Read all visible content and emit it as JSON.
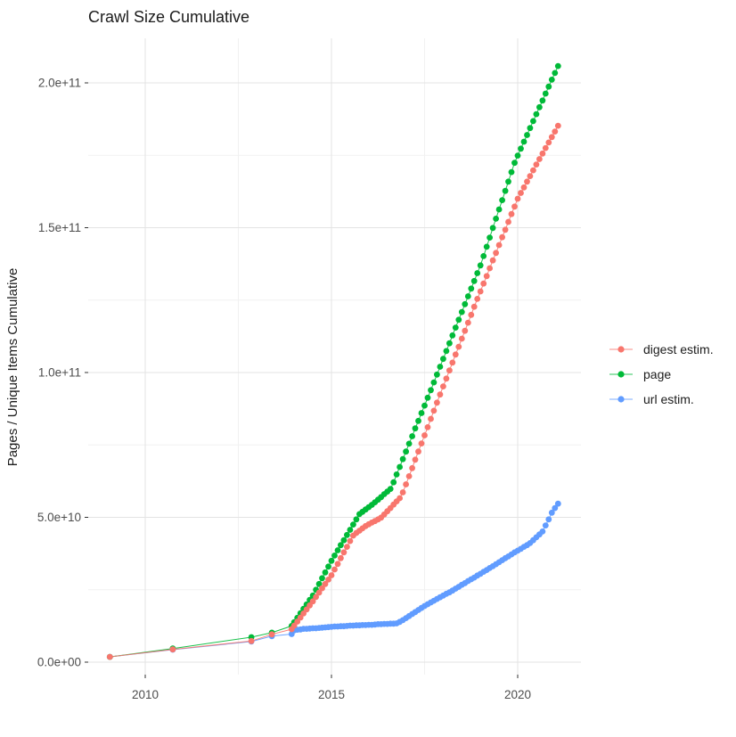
{
  "title": "Crawl Size Cumulative",
  "axes": {
    "x": {
      "tick_labels": [
        "2010",
        "2015",
        "2020"
      ],
      "tick_years": [
        2010,
        2015,
        2020
      ],
      "minor_years": [
        2012.5,
        2017.5
      ]
    },
    "y": {
      "title": "Pages / Unique Items Cumulative",
      "tick_labels": [
        "0.0e+00",
        "5.0e+10",
        "1.0e+11",
        "1.5e+11",
        "2.0e+11"
      ],
      "tick_values_e9": [
        0,
        50,
        100,
        150,
        200
      ],
      "minor_values_e9": [
        25,
        75,
        125,
        175
      ]
    }
  },
  "legend": {
    "items": [
      {
        "label": "digest estim.",
        "color": "#F8766D"
      },
      {
        "label": "page",
        "color": "#00BA38"
      },
      {
        "label": "url estim.",
        "color": "#619CFF"
      }
    ]
  },
  "chart_data": {
    "type": "scatter",
    "title": "Crawl Size Cumulative",
    "xlabel": "",
    "ylabel": "Pages / Unique Items Cumulative",
    "x_unit": "year (decimal)",
    "y_unit": "cumulative pages / unique items, billions (1e9)",
    "xlim": [
      2008.5,
      2021.8
    ],
    "ylim_e9": [
      -9,
      216
    ],
    "grid": true,
    "legend_position": "right",
    "series": [
      {
        "name": "digest estim.",
        "color": "#F8766D",
        "points": [
          [
            2009.05,
            1.8
          ],
          [
            2010.74,
            4.4
          ],
          [
            2012.85,
            7.3
          ],
          [
            2013.4,
            9.6
          ],
          [
            2013.93,
            11.4
          ],
          [
            2014.0,
            12.6
          ],
          [
            2014.083,
            14.0
          ],
          [
            2014.167,
            15.4
          ],
          [
            2014.25,
            16.8
          ],
          [
            2014.333,
            18.2
          ],
          [
            2014.417,
            19.6
          ],
          [
            2014.5,
            21.0
          ],
          [
            2014.583,
            22.5
          ],
          [
            2014.667,
            24.0
          ],
          [
            2014.75,
            25.5
          ],
          [
            2014.833,
            27.0
          ],
          [
            2014.917,
            28.5
          ],
          [
            2015.0,
            30.0
          ],
          [
            2015.083,
            32.0
          ],
          [
            2015.167,
            33.9
          ],
          [
            2015.25,
            35.9
          ],
          [
            2015.333,
            37.9
          ],
          [
            2015.417,
            39.8
          ],
          [
            2015.5,
            41.8
          ],
          [
            2015.583,
            43.7
          ],
          [
            2015.667,
            44.6
          ],
          [
            2015.75,
            45.4
          ],
          [
            2015.833,
            46.2
          ],
          [
            2015.917,
            47.0
          ],
          [
            2016.0,
            47.6
          ],
          [
            2016.083,
            48.2
          ],
          [
            2016.167,
            48.7
          ],
          [
            2016.25,
            49.3
          ],
          [
            2016.333,
            49.9
          ],
          [
            2016.417,
            51.0
          ],
          [
            2016.5,
            52.1
          ],
          [
            2016.583,
            53.2
          ],
          [
            2016.667,
            54.4
          ],
          [
            2016.75,
            55.5
          ],
          [
            2016.833,
            56.6
          ],
          [
            2016.917,
            58.6
          ],
          [
            2017.0,
            61.4
          ],
          [
            2017.083,
            64.2
          ],
          [
            2017.167,
            67.0
          ],
          [
            2017.25,
            69.9
          ],
          [
            2017.333,
            72.7
          ],
          [
            2017.417,
            75.5
          ],
          [
            2017.5,
            78.3
          ],
          [
            2017.583,
            81.1
          ],
          [
            2017.667,
            84.0
          ],
          [
            2017.75,
            86.8
          ],
          [
            2017.833,
            89.6
          ],
          [
            2017.917,
            92.4
          ],
          [
            2018.0,
            95.2
          ],
          [
            2018.083,
            97.9
          ],
          [
            2018.167,
            100.7
          ],
          [
            2018.25,
            103.4
          ],
          [
            2018.333,
            106.2
          ],
          [
            2018.417,
            108.9
          ],
          [
            2018.5,
            111.7
          ],
          [
            2018.583,
            114.4
          ],
          [
            2018.667,
            117.2
          ],
          [
            2018.75,
            119.9
          ],
          [
            2018.833,
            122.7
          ],
          [
            2018.917,
            125.4
          ],
          [
            2019.0,
            128.0
          ],
          [
            2019.083,
            130.7
          ],
          [
            2019.167,
            133.3
          ],
          [
            2019.25,
            136.0
          ],
          [
            2019.333,
            138.7
          ],
          [
            2019.417,
            141.3
          ],
          [
            2019.5,
            144.0
          ],
          [
            2019.583,
            146.7
          ],
          [
            2019.667,
            149.3
          ],
          [
            2019.75,
            152.0
          ],
          [
            2019.833,
            154.7
          ],
          [
            2019.917,
            157.3
          ],
          [
            2020.0,
            160.0
          ],
          [
            2020.083,
            162.0
          ],
          [
            2020.167,
            163.9
          ],
          [
            2020.25,
            165.9
          ],
          [
            2020.333,
            167.8
          ],
          [
            2020.417,
            169.8
          ],
          [
            2020.5,
            171.8
          ],
          [
            2020.583,
            173.7
          ],
          [
            2020.667,
            175.6
          ],
          [
            2020.75,
            177.5
          ],
          [
            2020.833,
            179.4
          ],
          [
            2020.917,
            181.3
          ],
          [
            2021.0,
            183.2
          ],
          [
            2021.083,
            185.2
          ]
        ]
      },
      {
        "name": "page",
        "color": "#00BA38",
        "points": [
          [
            2009.05,
            1.8
          ],
          [
            2010.74,
            4.7
          ],
          [
            2012.85,
            8.6
          ],
          [
            2013.4,
            10.2
          ],
          [
            2013.93,
            12.5
          ],
          [
            2014.0,
            13.8
          ],
          [
            2014.083,
            15.3
          ],
          [
            2014.167,
            16.9
          ],
          [
            2014.25,
            18.4
          ],
          [
            2014.333,
            19.9
          ],
          [
            2014.417,
            21.5
          ],
          [
            2014.5,
            23.0
          ],
          [
            2014.583,
            25.0
          ],
          [
            2014.667,
            27.0
          ],
          [
            2014.75,
            29.0
          ],
          [
            2014.833,
            31.0
          ],
          [
            2014.917,
            33.0
          ],
          [
            2015.0,
            35.0
          ],
          [
            2015.083,
            36.8
          ],
          [
            2015.167,
            38.6
          ],
          [
            2015.25,
            40.4
          ],
          [
            2015.333,
            42.1
          ],
          [
            2015.417,
            43.9
          ],
          [
            2015.5,
            45.7
          ],
          [
            2015.583,
            47.5
          ],
          [
            2015.667,
            49.3
          ],
          [
            2015.75,
            51.1
          ],
          [
            2015.833,
            51.9
          ],
          [
            2015.917,
            52.7
          ],
          [
            2016.0,
            53.5
          ],
          [
            2016.083,
            54.3
          ],
          [
            2016.167,
            55.2
          ],
          [
            2016.25,
            56.1
          ],
          [
            2016.333,
            57.0
          ],
          [
            2016.417,
            58.0
          ],
          [
            2016.5,
            58.9
          ],
          [
            2016.583,
            59.8
          ],
          [
            2016.667,
            62.1
          ],
          [
            2016.75,
            64.8
          ],
          [
            2016.833,
            67.4
          ],
          [
            2016.917,
            70.1
          ],
          [
            2017.0,
            72.7
          ],
          [
            2017.083,
            75.4
          ],
          [
            2017.167,
            78.0
          ],
          [
            2017.25,
            80.7
          ],
          [
            2017.333,
            83.3
          ],
          [
            2017.417,
            86.0
          ],
          [
            2017.5,
            88.6
          ],
          [
            2017.583,
            91.3
          ],
          [
            2017.667,
            93.9
          ],
          [
            2017.75,
            96.6
          ],
          [
            2017.833,
            99.3
          ],
          [
            2017.917,
            102.0
          ],
          [
            2018.0,
            104.7
          ],
          [
            2018.083,
            107.4
          ],
          [
            2018.167,
            110.1
          ],
          [
            2018.25,
            112.8
          ],
          [
            2018.333,
            115.5
          ],
          [
            2018.417,
            118.2
          ],
          [
            2018.5,
            120.9
          ],
          [
            2018.583,
            123.6
          ],
          [
            2018.667,
            126.3
          ],
          [
            2018.75,
            129.0
          ],
          [
            2018.833,
            131.6
          ],
          [
            2018.917,
            134.3
          ],
          [
            2019.0,
            137.0
          ],
          [
            2019.083,
            140.2
          ],
          [
            2019.167,
            143.4
          ],
          [
            2019.25,
            146.6
          ],
          [
            2019.333,
            149.9
          ],
          [
            2019.417,
            153.1
          ],
          [
            2019.5,
            156.3
          ],
          [
            2019.583,
            159.5
          ],
          [
            2019.667,
            162.7
          ],
          [
            2019.75,
            165.9
          ],
          [
            2019.833,
            169.2
          ],
          [
            2019.917,
            172.4
          ],
          [
            2020.0,
            174.9
          ],
          [
            2020.083,
            177.3
          ],
          [
            2020.167,
            179.7
          ],
          [
            2020.25,
            182.0
          ],
          [
            2020.333,
            184.4
          ],
          [
            2020.417,
            186.8
          ],
          [
            2020.5,
            189.2
          ],
          [
            2020.583,
            191.6
          ],
          [
            2020.667,
            193.9
          ],
          [
            2020.75,
            196.3
          ],
          [
            2020.833,
            198.7
          ],
          [
            2020.917,
            201.1
          ],
          [
            2021.0,
            203.4
          ],
          [
            2021.083,
            205.8
          ]
        ]
      },
      {
        "name": "url estim.",
        "color": "#619CFF",
        "points": [
          [
            2009.05,
            1.8
          ],
          [
            2010.74,
            4.3
          ],
          [
            2012.85,
            7.1
          ],
          [
            2013.4,
            9.0
          ],
          [
            2013.93,
            9.7
          ],
          [
            2014.0,
            11.0
          ],
          [
            2014.083,
            11.2
          ],
          [
            2014.167,
            11.3
          ],
          [
            2014.25,
            11.5
          ],
          [
            2014.333,
            11.5
          ],
          [
            2014.417,
            11.6
          ],
          [
            2014.5,
            11.7
          ],
          [
            2014.583,
            11.7
          ],
          [
            2014.667,
            11.8
          ],
          [
            2014.75,
            11.9
          ],
          [
            2014.833,
            12.0
          ],
          [
            2014.917,
            12.1
          ],
          [
            2015.0,
            12.2
          ],
          [
            2015.083,
            12.3
          ],
          [
            2015.167,
            12.3
          ],
          [
            2015.25,
            12.4
          ],
          [
            2015.333,
            12.4
          ],
          [
            2015.417,
            12.5
          ],
          [
            2015.5,
            12.6
          ],
          [
            2015.583,
            12.6
          ],
          [
            2015.667,
            12.7
          ],
          [
            2015.75,
            12.7
          ],
          [
            2015.833,
            12.8
          ],
          [
            2015.917,
            12.8
          ],
          [
            2016.0,
            12.9
          ],
          [
            2016.083,
            12.9
          ],
          [
            2016.167,
            13.0
          ],
          [
            2016.25,
            13.1
          ],
          [
            2016.333,
            13.1
          ],
          [
            2016.417,
            13.2
          ],
          [
            2016.5,
            13.2
          ],
          [
            2016.583,
            13.3
          ],
          [
            2016.667,
            13.3
          ],
          [
            2016.75,
            13.4
          ],
          [
            2016.833,
            13.9
          ],
          [
            2016.917,
            14.5
          ],
          [
            2017.0,
            15.2
          ],
          [
            2017.083,
            15.9
          ],
          [
            2017.167,
            16.6
          ],
          [
            2017.25,
            17.3
          ],
          [
            2017.333,
            18.0
          ],
          [
            2017.417,
            18.7
          ],
          [
            2017.5,
            19.4
          ],
          [
            2017.583,
            20.0
          ],
          [
            2017.667,
            20.6
          ],
          [
            2017.75,
            21.2
          ],
          [
            2017.833,
            21.8
          ],
          [
            2017.917,
            22.4
          ],
          [
            2018.0,
            23.0
          ],
          [
            2018.083,
            23.6
          ],
          [
            2018.167,
            24.1
          ],
          [
            2018.25,
            24.7
          ],
          [
            2018.333,
            25.4
          ],
          [
            2018.417,
            26.0
          ],
          [
            2018.5,
            26.7
          ],
          [
            2018.583,
            27.3
          ],
          [
            2018.667,
            28.0
          ],
          [
            2018.75,
            28.6
          ],
          [
            2018.833,
            29.2
          ],
          [
            2018.917,
            29.9
          ],
          [
            2019.0,
            30.5
          ],
          [
            2019.083,
            31.2
          ],
          [
            2019.167,
            31.8
          ],
          [
            2019.25,
            32.5
          ],
          [
            2019.333,
            33.1
          ],
          [
            2019.417,
            33.8
          ],
          [
            2019.5,
            34.5
          ],
          [
            2019.583,
            35.2
          ],
          [
            2019.667,
            35.9
          ],
          [
            2019.75,
            36.5
          ],
          [
            2019.833,
            37.2
          ],
          [
            2019.917,
            37.9
          ],
          [
            2020.0,
            38.5
          ],
          [
            2020.083,
            39.1
          ],
          [
            2020.167,
            39.8
          ],
          [
            2020.25,
            40.4
          ],
          [
            2020.333,
            41.1
          ],
          [
            2020.417,
            42.1
          ],
          [
            2020.5,
            43.1
          ],
          [
            2020.583,
            44.1
          ],
          [
            2020.667,
            45.1
          ],
          [
            2020.75,
            47.2
          ],
          [
            2020.833,
            49.3
          ],
          [
            2020.917,
            51.6
          ],
          [
            2021.0,
            53.2
          ],
          [
            2021.083,
            54.7
          ]
        ]
      }
    ]
  }
}
